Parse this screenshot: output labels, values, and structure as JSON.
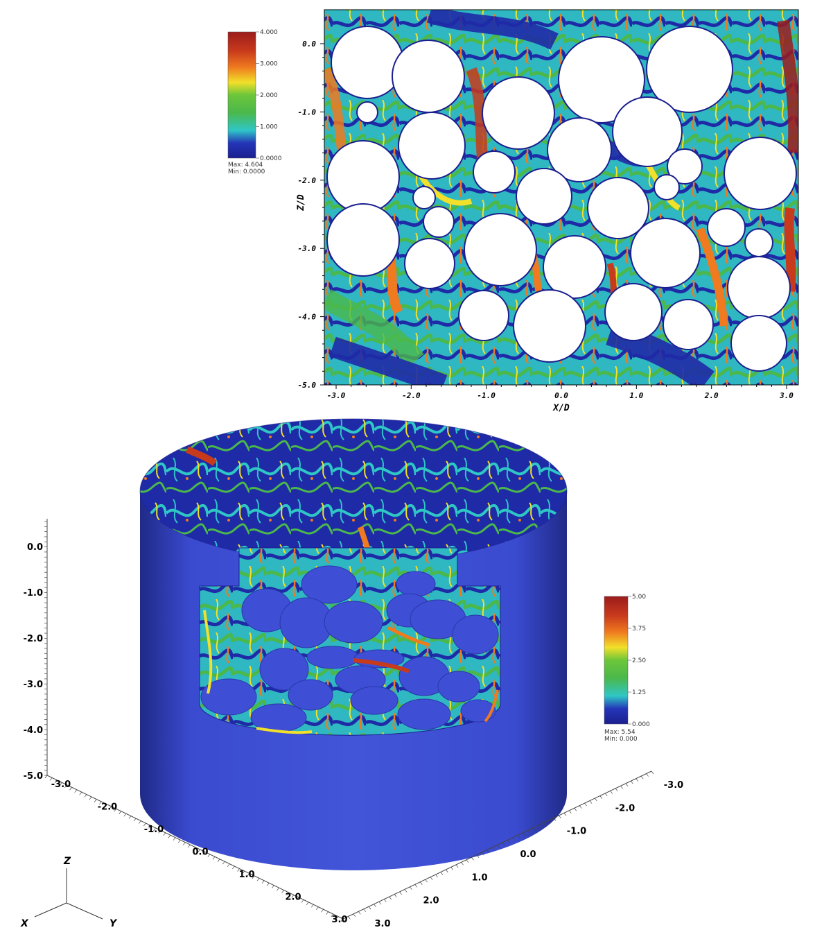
{
  "top_plot": {
    "colorbar": {
      "ticks": [
        "4.000",
        "3.000",
        "2.000",
        "1.000",
        "0.0000"
      ],
      "max_label": "Max: 4.604",
      "min_label": "Min: 0.0000"
    },
    "y_ticks": [
      "0.0",
      "-1.0",
      "-2.0",
      "-3.0",
      "-4.0",
      "-5.0"
    ],
    "x_ticks": [
      "-3.0",
      "-2.0",
      "-1.0",
      "0.0",
      "1.0",
      "2.0",
      "3.0"
    ],
    "y_axis_label": "Z/D",
    "x_axis_label": "X/D"
  },
  "bottom_plot": {
    "colorbar": {
      "ticks": [
        "5.00",
        "3.75",
        "2.50",
        "1.25",
        "0.000"
      ],
      "max_label": "Max: 5.54",
      "min_label": "Min: 0.000"
    },
    "z_ticks": [
      "0.0",
      "-1.0",
      "-2.0",
      "-3.0",
      "-4.0",
      "-5.0"
    ],
    "x_ticks": [
      "-3.0",
      "-2.0",
      "-1.0",
      "0.0",
      "1.0",
      "2.0",
      "3.0"
    ],
    "y_ticks": [
      "-3.0",
      "-2.0",
      "-1.0",
      "0.0",
      "1.0",
      "2.0",
      "3.0"
    ],
    "triad": {
      "z": "Z",
      "x": "X",
      "y": "Y"
    }
  },
  "colors": {
    "low": "#1b1f8f",
    "cylinder": "#3e4fd6",
    "mid": "#2fc6c6",
    "green": "#4bb84b",
    "yellow": "#f2e02a",
    "orange": "#ef7a1f",
    "high": "#9b1c1c"
  }
}
